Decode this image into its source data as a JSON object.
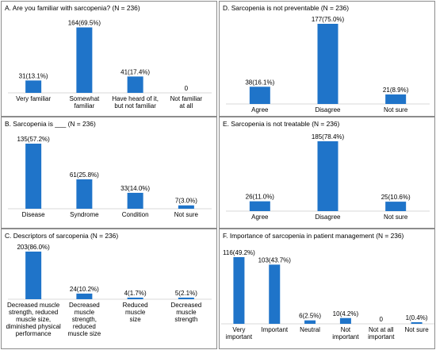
{
  "panels": [
    {
      "title": "A. Are you familiar with sarcopenia? (N = 236)",
      "chart_data": {
        "type": "bar",
        "title": "A. Are you familiar with sarcopenia? (N = 236)",
        "categories": [
          [
            "Very familiar"
          ],
          [
            "Somewhat",
            "familiar"
          ],
          [
            "Have heard of it,",
            "but not familiar"
          ],
          [
            "Not familiar",
            "at all"
          ]
        ],
        "values": [
          31,
          164,
          41,
          0
        ],
        "labels": [
          "31(13.1%)",
          "164(69.5%)",
          "41(17.4%)",
          "0"
        ],
        "ylim": [
          0,
          177
        ],
        "color": "#1f74c9"
      }
    },
    {
      "title": "B. Sarcopenia is ___ (N = 236)",
      "chart_data": {
        "type": "bar",
        "title": "B. Sarcopenia is ___ (N = 236)",
        "categories": [
          [
            "Disease"
          ],
          [
            "Syndrome"
          ],
          [
            "Condition"
          ],
          [
            "Not sure"
          ]
        ],
        "values": [
          135,
          61,
          33,
          7
        ],
        "labels": [
          "135(57.2%)",
          "61(25.8%)",
          "33(14.0%)",
          "7(3.0%)"
        ],
        "ylim": [
          0,
          135
        ],
        "color": "#1f74c9"
      }
    },
    {
      "title": "C. Descriptors of sarcopenia (N = 236)",
      "chart_data": {
        "type": "bar",
        "title": "C. Descriptors of sarcopenia (N = 236)",
        "categories": [
          [
            "Decreased muscle",
            "strength, reduced",
            "muscle size,",
            "diminished physical",
            "performance"
          ],
          [
            "Decreased",
            "muscle",
            "strength,",
            "reduced",
            "muscle size"
          ],
          [
            "Reduced",
            "muscle",
            "size"
          ],
          [
            "Decreased",
            "muscle",
            "strength"
          ]
        ],
        "values": [
          203,
          24,
          4,
          5
        ],
        "labels": [
          "203(86.0%)",
          "24(10.2%)",
          "4(1.7%)",
          "5(2.1%)"
        ],
        "ylim": [
          0,
          203
        ],
        "color": "#1f74c9"
      }
    },
    {
      "title": "D. Sarcopenia is not preventable (N = 236)",
      "chart_data": {
        "type": "bar",
        "title": "D. Sarcopenia is not preventable (N = 236)",
        "categories": [
          [
            "Agree"
          ],
          [
            "Disagree"
          ],
          [
            "Not sure"
          ]
        ],
        "values": [
          38,
          177,
          21
        ],
        "labels": [
          "38(16.1%)",
          "177(75.0%)",
          "21(8.9%)"
        ],
        "ylim": [
          0,
          177
        ],
        "color": "#1f74c9"
      }
    },
    {
      "title": "E. Sarcopenia is not treatable (N = 236)",
      "chart_data": {
        "type": "bar",
        "title": "E. Sarcopenia is not treatable (N = 236)",
        "categories": [
          [
            "Agree"
          ],
          [
            "Disagree"
          ],
          [
            "Not sure"
          ]
        ],
        "values": [
          26,
          185,
          25
        ],
        "labels": [
          "26(11.0%)",
          "185(78.4%)",
          "25(10.6%)"
        ],
        "ylim": [
          0,
          185
        ],
        "color": "#1f74c9"
      }
    },
    {
      "title": "F. Importance of sarcopenia in patient management (N = 236)",
      "chart_data": {
        "type": "bar",
        "title": "F. Importance of sarcopenia in patient management (N = 236)",
        "categories": [
          [
            "Very",
            "important"
          ],
          [
            "Important"
          ],
          [
            "Neutral"
          ],
          [
            "Not",
            "important"
          ],
          [
            "Not at all",
            "important"
          ],
          [
            "Not sure"
          ]
        ],
        "values": [
          116,
          103,
          6,
          10,
          0,
          1
        ],
        "labels": [
          "116(49.2%)",
          "103(43.7%)",
          "6(2.5%)",
          "10(4.2%)",
          "0",
          "1(0.4%)"
        ],
        "ylim": [
          0,
          116
        ],
        "color": "#1f74c9"
      }
    }
  ]
}
